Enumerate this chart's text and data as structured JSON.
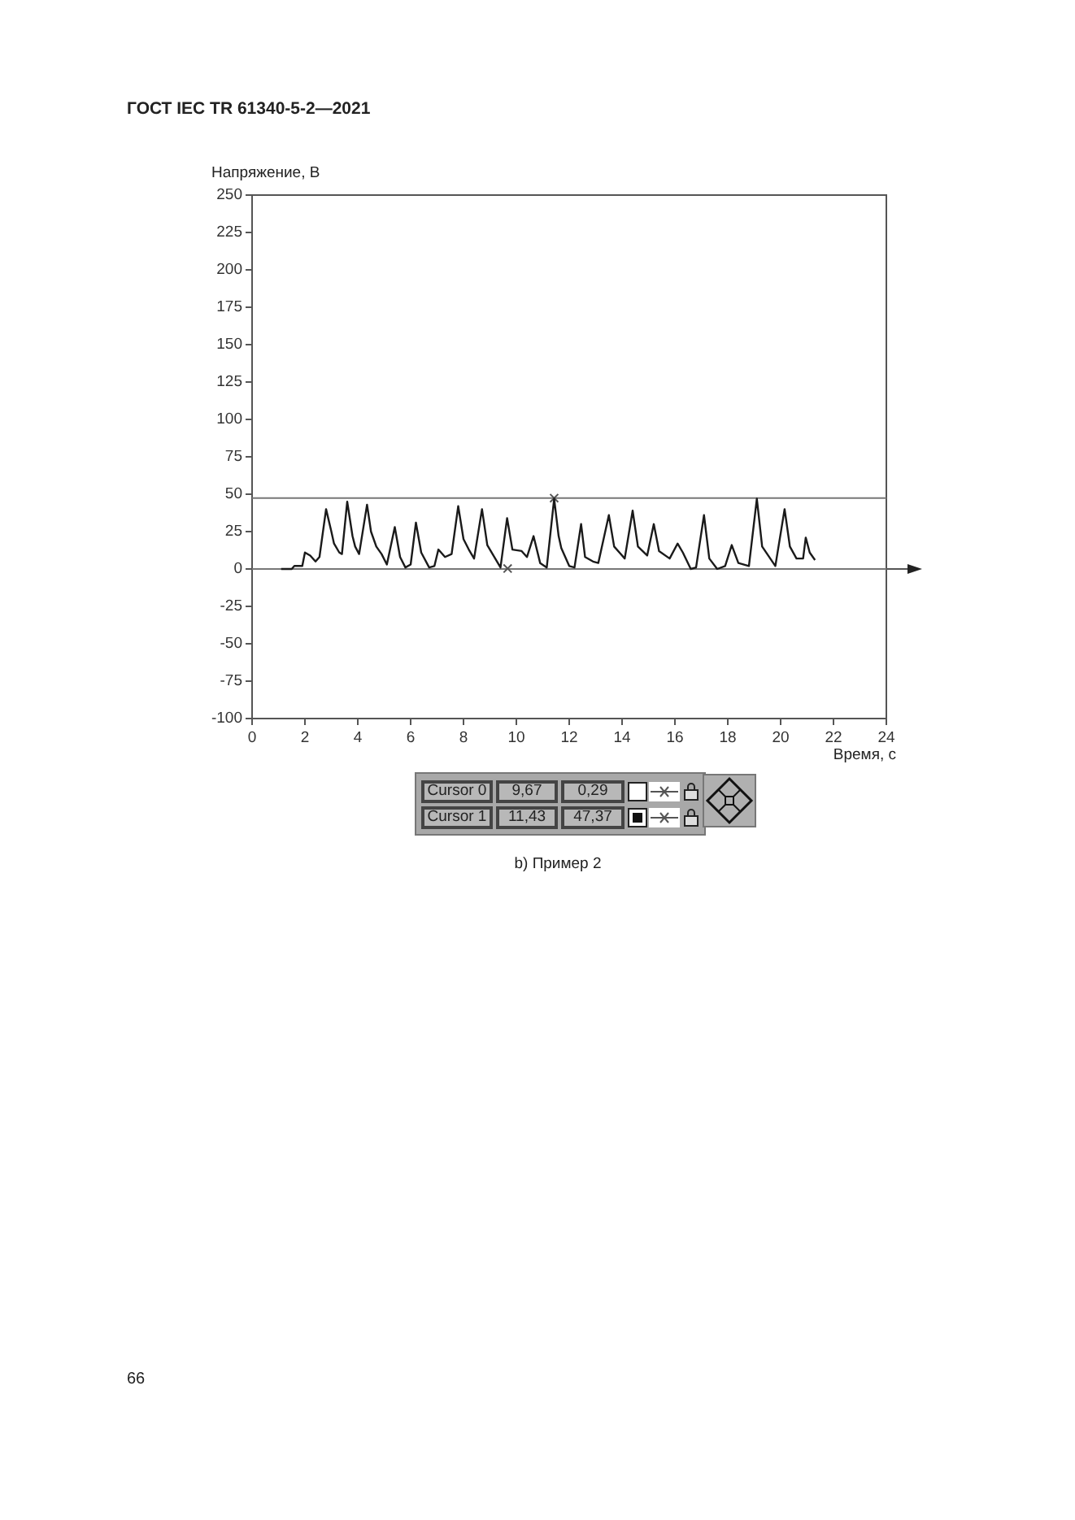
{
  "chart_data": {
    "type": "line",
    "title": "b) Пример 2",
    "xlabel": "Время, с",
    "ylabel": "Напряжение, В",
    "annotations": [
      "ГОСТ IEC TR 61340-5-2—2021",
      "66",
      "Cursor 0",
      "9,67",
      "0,29",
      "Cursor 1",
      "11,43",
      "47,37"
    ],
    "xlim": [
      0,
      24
    ],
    "xticks": [
      0,
      2,
      4,
      6,
      8,
      10,
      12,
      14,
      16,
      18,
      20,
      22,
      24
    ],
    "ylim": [
      -100,
      250
    ],
    "yticks": [
      -100,
      -75,
      -50,
      -25,
      0,
      25,
      50,
      75,
      100,
      125,
      150,
      175,
      200,
      225,
      250
    ],
    "grid": false,
    "marker": "none",
    "line_style": "solid",
    "ref_lines": [
      {
        "axis": "y",
        "value": 47.37,
        "color": "#777777"
      },
      {
        "axis": "y",
        "value": 0,
        "color": "#777777"
      }
    ],
    "series": [
      {
        "color": "#1a1a1a",
        "x": [
          1.1,
          1.5,
          1.6,
          1.9,
          2.0,
          2.2,
          2.4,
          2.55,
          2.8,
          3.0,
          3.1,
          3.3,
          3.4,
          3.6,
          3.8,
          3.9,
          4.05,
          4.35,
          4.5,
          4.7,
          4.9,
          5.1,
          5.4,
          5.6,
          5.8,
          6.0,
          6.2,
          6.4,
          6.7,
          6.9,
          7.05,
          7.3,
          7.55,
          7.8,
          8.0,
          8.2,
          8.4,
          8.7,
          8.9,
          9.1,
          9.4,
          9.65,
          9.85,
          10.2,
          10.4,
          10.65,
          10.9,
          11.15,
          11.43,
          11.6,
          11.7,
          12.0,
          12.2,
          12.45,
          12.6,
          12.9,
          13.1,
          13.5,
          13.7,
          14.1,
          14.4,
          14.6,
          14.95,
          15.2,
          15.4,
          15.8,
          16.1,
          16.3,
          16.6,
          16.8,
          17.1,
          17.3,
          17.6,
          17.9,
          18.15,
          18.4,
          18.8,
          19.1,
          19.3,
          19.8,
          20.15,
          20.35,
          20.6,
          20.85,
          20.95,
          21.1,
          21.3
        ],
        "values": [
          0,
          0,
          2,
          2,
          11,
          9,
          5,
          8,
          40,
          25,
          17,
          11,
          10,
          45,
          22,
          15,
          10,
          43,
          25,
          15,
          10,
          3,
          28,
          8,
          1,
          3,
          31,
          11,
          1,
          2,
          13,
          8,
          10,
          42,
          20,
          13,
          7,
          40,
          16,
          10,
          1,
          34,
          13,
          12,
          8,
          22,
          4,
          1,
          47,
          22,
          14,
          2,
          1,
          30,
          8,
          5,
          4,
          36,
          15,
          7,
          39,
          15,
          9,
          30,
          12,
          7,
          17,
          11,
          0,
          1,
          36,
          7,
          0,
          2,
          16,
          4,
          2,
          47,
          15,
          2,
          40,
          15,
          7,
          7,
          21,
          11,
          6
        ]
      },
      {
        "type": "scatter",
        "color": "#555555",
        "marker": "cross",
        "x": [
          9.67
        ],
        "values": [
          0.29
        ]
      },
      {
        "type": "scatter",
        "color": "#555555",
        "marker": "cross",
        "x": [
          11.43
        ],
        "values": [
          47.37
        ]
      }
    ]
  }
}
